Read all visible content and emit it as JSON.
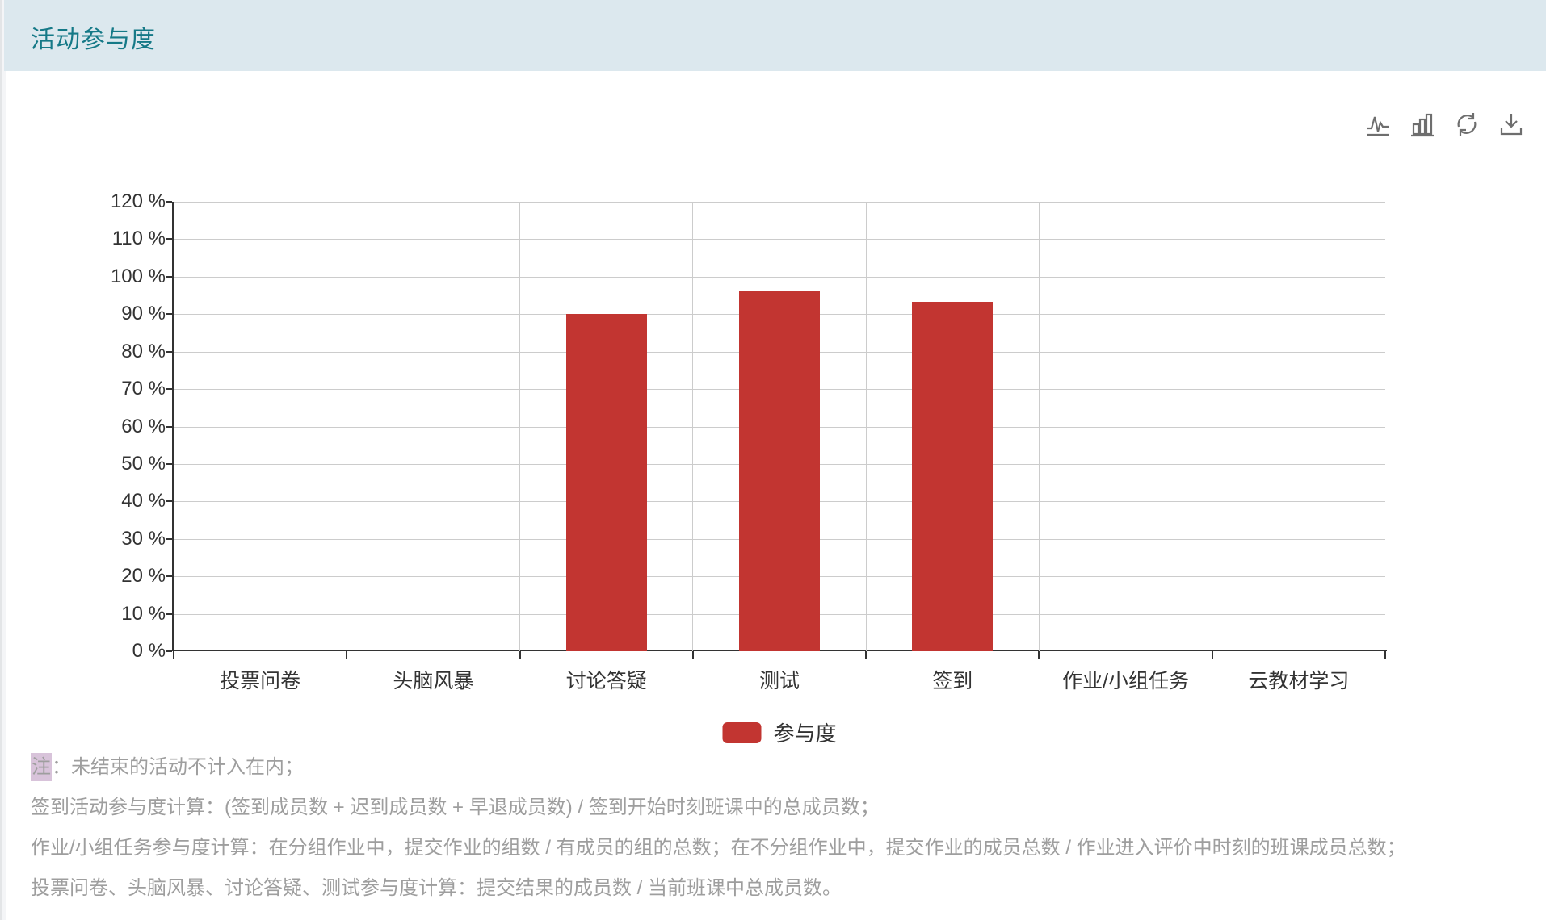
{
  "header": {
    "title": "活动参与度"
  },
  "toolbox": {
    "icons": [
      {
        "name": "line-chart-icon",
        "meaning": "切换为折线图"
      },
      {
        "name": "bar-chart-icon",
        "meaning": "切换为柱状图"
      },
      {
        "name": "refresh-icon",
        "meaning": "还原"
      },
      {
        "name": "download-icon",
        "meaning": "保存为图片"
      }
    ]
  },
  "chart_data": {
    "type": "bar",
    "title": "",
    "categories": [
      "投票问卷",
      "头脑风暴",
      "讨论答疑",
      "测试",
      "签到",
      "作业/小组任务",
      "云教材学习"
    ],
    "series": [
      {
        "name": "参与度",
        "color": "#c23531",
        "values": [
          0,
          0,
          90,
          96,
          93.3,
          0,
          0
        ]
      }
    ],
    "xlabel": "",
    "ylabel": "",
    "ylim": [
      0,
      120
    ],
    "ytick_step": 10,
    "ytick_suffix": " %",
    "grid": true,
    "legend_position": "bottom"
  },
  "legend": {
    "label": "参与度",
    "color": "#c23531"
  },
  "notes": {
    "highlight": "注",
    "line1": "：未结束的活动不计入在内；",
    "line2": "签到活动参与度计算：(签到成员数 + 迟到成员数 + 早退成员数) / 签到开始时刻班课中的总成员数；",
    "line3": "作业/小组任务参与度计算：在分组作业中，提交作业的组数 / 有成员的组的总数；在不分组作业中，提交作业的成员总数 / 作业进入评价中时刻的班课成员总数；",
    "line4": "投票问卷、头脑风暴、讨论答疑、测试参与度计算：提交结果的成员数 / 当前班课中总成员数。"
  },
  "colors": {
    "bar": "#c23531",
    "header_bg": "#dce8ee",
    "header_text": "#157987",
    "grid_line": "#cccccc",
    "axis_line": "#333333",
    "note_text": "#9e9e9e",
    "note_highlight_bg": "#d8c3da"
  }
}
